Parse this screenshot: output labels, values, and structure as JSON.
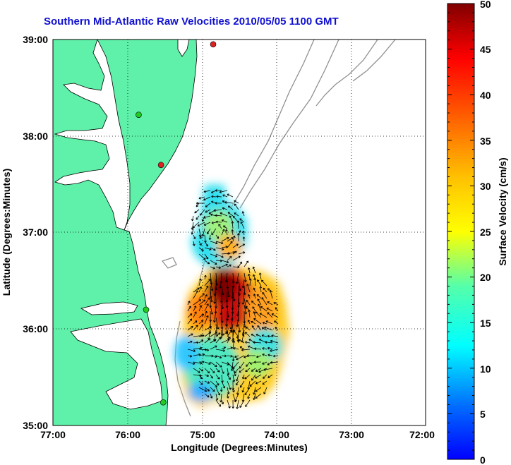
{
  "title": "Southern Mid-Atlantic Raw Velocities 2010/05/05 1100 GMT",
  "colors": {
    "title": "#1010d0",
    "land": "#5ff0a9",
    "water": "#ffffff",
    "coast": "#000000",
    "bathymetry": "#909090",
    "station_green": "#22cc22",
    "station_red": "#dd2222",
    "vector": "#000000"
  },
  "map": {
    "xlabel": "Longitude (Degrees:Minutes)",
    "ylabel": "Latitude (Degrees:Minutes)",
    "lon_ticks": [
      "77:00",
      "76:00",
      "75:00",
      "74:00",
      "73:00",
      "72:00"
    ],
    "lat_ticks": [
      "39:00",
      "38:00",
      "37:00",
      "36:00",
      "35:00"
    ],
    "lon_range": [
      -77,
      -72
    ],
    "lat_range": [
      35,
      39
    ],
    "grid": "dotted"
  },
  "colorbar": {
    "label": "Surface Velocity (cm/s)",
    "ticks": [
      "0",
      "5",
      "10",
      "15",
      "20",
      "25",
      "30",
      "35",
      "40",
      "45",
      "50"
    ],
    "range": [
      0,
      50
    ],
    "colormap": "jet"
  },
  "stations": [
    {
      "color": "red",
      "lon": -74.85,
      "lat": 38.95
    },
    {
      "color": "green",
      "lon": -75.85,
      "lat": 38.22
    },
    {
      "color": "red",
      "lon": -75.55,
      "lat": 37.7
    },
    {
      "color": "green",
      "lon": -75.75,
      "lat": 36.2
    },
    {
      "color": "green",
      "lon": -75.52,
      "lat": 35.24
    }
  ]
}
